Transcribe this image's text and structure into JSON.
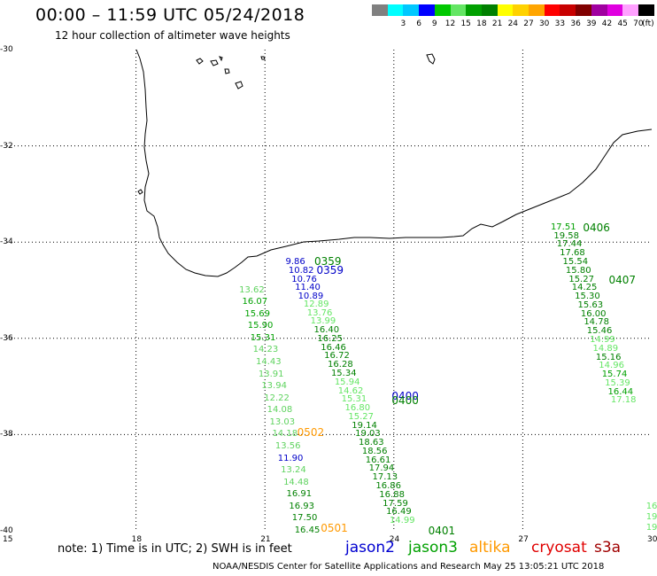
{
  "header": {
    "title": "00:00 – 11:59 UTC 05/24/2018",
    "subtitle": "12 hour collection of altimeter wave heights"
  },
  "colorbar": {
    "unit": "(ft)",
    "bins": [
      {
        "label": "",
        "color": "#808080"
      },
      {
        "label": "3",
        "color": "#00ffff"
      },
      {
        "label": "6",
        "color": "#00c8ff"
      },
      {
        "label": "9",
        "color": "#0000ff"
      },
      {
        "label": "12",
        "color": "#00c800"
      },
      {
        "label": "15",
        "color": "#64e664"
      },
      {
        "label": "18",
        "color": "#00a000"
      },
      {
        "label": "21",
        "color": "#008000"
      },
      {
        "label": "24",
        "color": "#ffff00"
      },
      {
        "label": "27",
        "color": "#ffd200"
      },
      {
        "label": "30",
        "color": "#ffa500"
      },
      {
        "label": "33",
        "color": "#ff0000"
      },
      {
        "label": "36",
        "color": "#c80000"
      },
      {
        "label": "39",
        "color": "#800000"
      },
      {
        "label": "42",
        "color": "#a000a0"
      },
      {
        "label": "45",
        "color": "#e000e0"
      },
      {
        "label": "70",
        "color": "#ffa0ff"
      },
      {
        "label": "",
        "color": "#000000"
      }
    ]
  },
  "axes": {
    "lon_ticks": [
      "15",
      "18",
      "21",
      "24",
      "27",
      "30"
    ],
    "lat_ticks": [
      "-30",
      "-32",
      "-34",
      "-36",
      "-38",
      "-40"
    ]
  },
  "tracks": [
    {
      "name": "track-w1",
      "color": "#5fd35f",
      "values": [
        "13.62",
        "16.07",
        "15.69",
        "15.90",
        "15.31",
        "14.23",
        "14.43",
        "13.91",
        "13.94",
        "12.22",
        "14.08",
        "13.03",
        "14.18",
        "13.56",
        "11.90",
        "13.24",
        "14.48",
        "16.91",
        "16.93",
        "17.50",
        "16.45"
      ],
      "colors": {
        "1": "#00a000",
        "2": "#00a000",
        "3": "#00a000",
        "4": "#00a000",
        "14": "#0000c8",
        "17": "#008000",
        "18": "#008000",
        "19": "#008000",
        "20": "#008000"
      },
      "lon": [
        20.4,
        20.47,
        20.53,
        20.6,
        20.66,
        20.72,
        20.79,
        20.85,
        20.92,
        20.98,
        21.05,
        21.11,
        21.17,
        21.24,
        21.3,
        21.37,
        21.43,
        21.5,
        21.56,
        21.63,
        21.69
      ],
      "lat": [
        -35.0,
        -35.25,
        -35.5,
        -35.75,
        -36.0,
        -36.25,
        -36.5,
        -36.75,
        -37.0,
        -37.25,
        -37.5,
        -37.75,
        -38.0,
        -38.25,
        -38.5,
        -38.75,
        -39.0,
        -39.25,
        -39.5,
        -39.75,
        -40.0
      ]
    },
    {
      "name": "track-mid-blue",
      "color": "#0000c8",
      "values": [
        "9.86",
        "10.82",
        "10.76",
        "11.40",
        "10.89"
      ],
      "lon": [
        21.48,
        21.55,
        21.62,
        21.7,
        21.77
      ],
      "lat": [
        -34.42,
        -34.6,
        -34.78,
        -34.96,
        -35.14
      ]
    },
    {
      "name": "track-mid-green",
      "color": "#64e664",
      "values": [
        "12.89",
        "13.76",
        "13.99",
        "16.40",
        "16.25",
        "16.46",
        "16.72",
        "16.28",
        "15.34",
        "15.94",
        "14.62",
        "15.31",
        "16.80",
        "15.27",
        "19.14",
        "19.03",
        "18.63",
        "18.56",
        "16.61",
        "17.94",
        "17.13",
        "16.86",
        "16.88",
        "17.59",
        "16.49",
        "14.99"
      ],
      "colors": {
        "3": "#008000",
        "4": "#008000",
        "5": "#008000",
        "6": "#008000",
        "7": "#008000",
        "8": "#008000",
        "14": "#008000",
        "15": "#008000",
        "16": "#008000",
        "17": "#008000",
        "18": "#008000",
        "19": "#008000",
        "20": "#008000",
        "21": "#008000",
        "22": "#008000",
        "23": "#008000",
        "24": "#008000"
      },
      "lon": [
        21.9,
        21.98,
        22.06,
        22.14,
        22.22,
        22.3,
        22.38,
        22.46,
        22.54,
        22.62,
        22.7,
        22.78,
        22.86,
        22.94,
        23.02,
        23.1,
        23.18,
        23.26,
        23.34,
        23.42,
        23.5,
        23.58,
        23.66,
        23.74,
        23.82,
        23.9
      ],
      "lat": [
        -35.3,
        -35.48,
        -35.66,
        -35.84,
        -36.02,
        -36.2,
        -36.38,
        -36.56,
        -36.74,
        -36.92,
        -37.1,
        -37.28,
        -37.46,
        -37.64,
        -37.82,
        -38.0,
        -38.18,
        -38.36,
        -38.54,
        -38.72,
        -38.9,
        -39.08,
        -39.26,
        -39.44,
        -39.62,
        -39.8
      ]
    },
    {
      "name": "track-east",
      "color": "#008000",
      "values": [
        "17.51",
        "19.58",
        "17.44",
        "17.68",
        "15.54",
        "15.80",
        "15.27",
        "14.25",
        "15.30",
        "15.63",
        "16.00",
        "14.78",
        "15.46",
        "14.99",
        "14.89",
        "15.16",
        "14.96",
        "15.74",
        "15.39",
        "16.44",
        "17.18"
      ],
      "colors": {
        "0": "#00a000",
        "13": "#64e664",
        "14": "#64e664",
        "16": "#64e664",
        "17": "#00a000",
        "18": "#64e664",
        "19": "#00a000",
        "20": "#64e664"
      },
      "lon": [
        27.65,
        27.72,
        27.79,
        27.86,
        27.93,
        28.0,
        28.07,
        28.14,
        28.21,
        28.28,
        28.35,
        28.42,
        28.49,
        28.56,
        28.63,
        28.7,
        28.77,
        28.84,
        28.91,
        28.98,
        29.05
      ],
      "lat": [
        -33.7,
        -33.88,
        -34.06,
        -34.24,
        -34.42,
        -34.6,
        -34.78,
        -34.96,
        -35.14,
        -35.32,
        -35.5,
        -35.68,
        -35.86,
        -36.04,
        -36.22,
        -36.4,
        -36.58,
        -36.76,
        -36.94,
        -37.12,
        -37.3
      ]
    },
    {
      "name": "track-east-edge",
      "color": "#64e664",
      "values": [
        "16",
        "19",
        "19"
      ],
      "lon": [
        29.87,
        29.87,
        29.87
      ],
      "lat": [
        -39.5,
        -39.72,
        -39.94
      ]
    }
  ],
  "pass_labels": [
    {
      "text": "0359",
      "color": "#008000",
      "lon": 22.15,
      "lat": -34.4
    },
    {
      "text": "0359",
      "color": "#0000c8",
      "lon": 22.2,
      "lat": -34.58
    },
    {
      "text": "0400",
      "color": "#0000c8",
      "lon": 23.95,
      "lat": -37.2
    },
    {
      "text": "0400",
      "color": "#008000",
      "lon": 23.95,
      "lat": -37.3
    },
    {
      "text": "0401",
      "color": "#008000",
      "lon": 24.8,
      "lat": -40.0
    },
    {
      "text": "0406",
      "color": "#008000",
      "lon": 28.4,
      "lat": -33.7
    },
    {
      "text": "0407",
      "color": "#008000",
      "lon": 29.0,
      "lat": -34.78
    },
    {
      "text": "0502",
      "color": "#ff9900",
      "lon": 21.75,
      "lat": -37.95
    },
    {
      "text": "0501",
      "color": "#ff9900",
      "lon": 22.3,
      "lat": -39.95
    }
  ],
  "note": "note: 1) Time is in UTC; 2) SWH is in feet",
  "satellites": [
    {
      "name": "jason2",
      "color": "#0000d0"
    },
    {
      "name": "jason3",
      "color": "#00a000"
    },
    {
      "name": "altika",
      "color": "#ff9900"
    },
    {
      "name": "cryosat",
      "color": "#e00000"
    },
    {
      "name": "s3a",
      "color": "#a00000"
    }
  ],
  "footer": "NOAA/NESDIS Center for Satellite Applications and Research    May 25 13:05:21 UTC 2018"
}
